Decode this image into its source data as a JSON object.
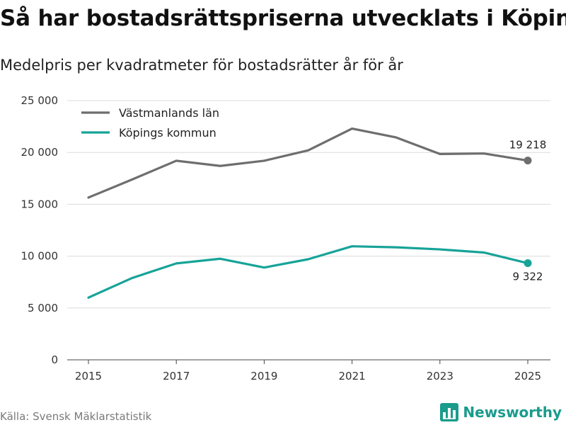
{
  "title": "Så har bostadsrättspriserna utvecklats i Köping",
  "subtitle": "Medelpris per kvadratmeter för bostadsrätter år för år",
  "source": "Källa: Svensk Mäklarstatistik",
  "brand": {
    "name": "Newsworthy",
    "icon": "bar-chart-logo-icon",
    "color": "#1a9b8c"
  },
  "chart_data": {
    "type": "line",
    "title": "Så har bostadsrättspriserna utvecklats i Köping",
    "subtitle": "Medelpris per kvadratmeter för bostadsrätter år för år",
    "xlabel": "",
    "ylabel": "",
    "x": [
      2015,
      2016,
      2017,
      2018,
      2019,
      2020,
      2021,
      2022,
      2023,
      2024,
      2025
    ],
    "xticks": [
      2015,
      2017,
      2019,
      2021,
      2023,
      2025
    ],
    "xtick_labels": [
      "2015",
      "2017",
      "2019",
      "2021",
      "2023",
      "2025"
    ],
    "yticks": [
      0,
      5000,
      10000,
      15000,
      20000,
      25000
    ],
    "ytick_labels": [
      "0",
      "5 000",
      "10 000",
      "15 000",
      "20 000",
      "25 000"
    ],
    "ylim": [
      0,
      25000
    ],
    "grid": "horizontal",
    "legend_position": "top-left",
    "series": [
      {
        "name": "Västmanlands län",
        "color": "#6e6e6e",
        "values": [
          15650,
          17400,
          19200,
          18700,
          19200,
          20200,
          22300,
          21450,
          19850,
          19900,
          19218
        ],
        "end_label": "19 218"
      },
      {
        "name": "Köpings kommun",
        "color": "#17a398",
        "values": [
          6000,
          7900,
          9300,
          9750,
          8900,
          9700,
          10950,
          10850,
          10650,
          10350,
          9322
        ],
        "end_label": "9 322"
      }
    ]
  }
}
